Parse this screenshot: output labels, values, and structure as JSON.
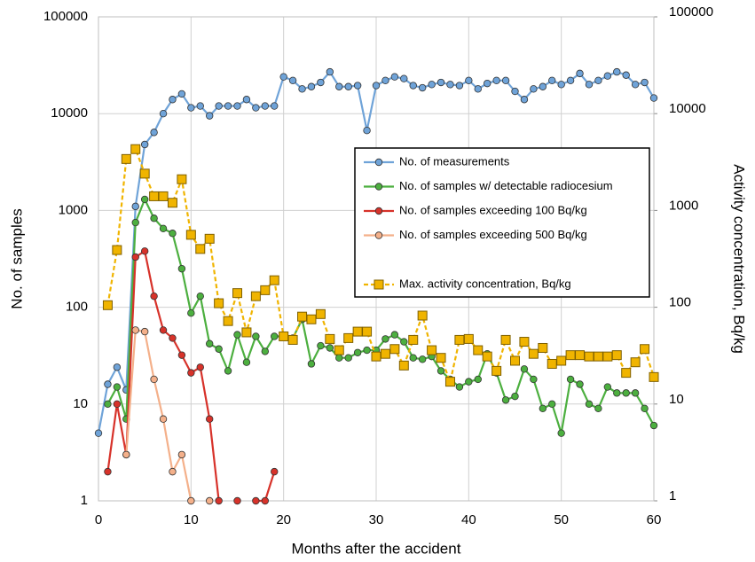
{
  "chart_data": {
    "type": "line",
    "x_label": "Months after the accident",
    "y_label": "No. of samples",
    "y2_label": "Activity concentration, Bq/kg",
    "x": [
      0,
      1,
      2,
      3,
      4,
      5,
      6,
      7,
      8,
      9,
      10,
      11,
      12,
      13,
      14,
      15,
      16,
      17,
      18,
      19,
      20,
      21,
      22,
      23,
      24,
      25,
      26,
      27,
      28,
      29,
      30,
      31,
      32,
      33,
      34,
      35,
      36,
      37,
      38,
      39,
      40,
      41,
      42,
      43,
      44,
      45,
      46,
      47,
      48,
      49,
      50,
      51,
      52,
      53,
      54,
      55,
      56,
      57,
      58,
      59,
      60
    ],
    "xlim": [
      0,
      60
    ],
    "xticks": [
      0,
      10,
      20,
      30,
      40,
      50,
      60
    ],
    "ylim": [
      1,
      100000
    ],
    "yticks": [
      1,
      10,
      100,
      1000,
      10000,
      100000
    ],
    "y2lim": [
      1,
      100000
    ],
    "y2ticks": [
      1,
      10,
      100,
      1000,
      10000,
      100000
    ],
    "log_scale": true,
    "grid": true,
    "legend_loc": "center right",
    "series": [
      {
        "name": "No. of measurements",
        "color": "#6fa3d8",
        "marker": "circle",
        "values": [
          5,
          16,
          24,
          14,
          1100,
          4800,
          6400,
          10000,
          14000,
          16000,
          11500,
          12000,
          9500,
          12000,
          12000,
          12000,
          14000,
          11500,
          12000,
          12000,
          24000,
          22000,
          18000,
          19000,
          21000,
          27000,
          19000,
          19000,
          19500,
          6700,
          19500,
          22000,
          24000,
          23000,
          19500,
          18500,
          20000,
          21000,
          20000,
          19500,
          22000,
          18000,
          20500,
          22000,
          22000,
          17000,
          14000,
          18000,
          19000,
          22000,
          20000,
          22000,
          26000,
          20000,
          22000,
          24500,
          27000,
          25000,
          20000,
          21000,
          14500
        ]
      },
      {
        "name": "No. of samples w/ detectable radiocesium",
        "color": "#4caf3f",
        "marker": "circle",
        "values": [
          null,
          10,
          15,
          7,
          750,
          1300,
          830,
          650,
          580,
          250,
          87,
          130,
          42,
          37,
          22,
          52,
          27,
          50,
          35,
          50,
          50,
          48,
          75,
          26,
          40,
          38,
          30,
          30,
          34,
          36,
          36,
          47,
          52,
          44,
          30,
          29,
          31,
          22,
          18,
          15,
          17,
          18,
          33,
          21,
          11,
          12,
          23,
          18,
          9,
          10,
          5,
          18,
          16,
          10,
          9,
          15,
          13,
          13,
          13,
          9,
          6
        ]
      },
      {
        "name": "No. of samples exceeding 100 Bq/kg",
        "color": "#d7322a",
        "marker": "circle",
        "values": [
          null,
          2,
          10,
          3,
          330,
          380,
          130,
          58,
          48,
          32,
          21,
          24,
          7,
          1,
          null,
          1,
          null,
          1,
          1,
          2,
          null,
          null,
          null,
          null,
          null,
          null,
          null,
          null,
          null,
          null,
          null,
          null,
          null,
          null,
          null,
          null,
          null,
          null,
          null,
          null,
          null,
          null,
          null,
          null,
          null,
          null,
          null,
          null,
          null,
          null,
          null,
          null,
          null,
          null,
          null,
          null,
          null,
          null,
          null,
          null,
          null
        ]
      },
      {
        "name": "No. of samples exceeding 500 Bq/kg",
        "color": "#f4b08a",
        "marker": "circle",
        "values": [
          null,
          null,
          null,
          3,
          58,
          56,
          18,
          7,
          2,
          3,
          1,
          null,
          1,
          null,
          null,
          null,
          null,
          null,
          null,
          null,
          null,
          null,
          null,
          null,
          null,
          null,
          null,
          null,
          null,
          null,
          null,
          null,
          null,
          null,
          null,
          null,
          null,
          null,
          null,
          null,
          null,
          null,
          null,
          null,
          null,
          null,
          null,
          null,
          null,
          null,
          null,
          null,
          null,
          null,
          null,
          null,
          null,
          null,
          null,
          null,
          null
        ]
      },
      {
        "name": "Max. activity concentration, Bq/kg",
        "color": "#f0b400",
        "marker": "square",
        "dashed": true,
        "axis": "y2",
        "values": [
          null,
          105,
          390,
          3400,
          4300,
          2400,
          1400,
          1400,
          1200,
          2100,
          560,
          400,
          510,
          110,
          72,
          140,
          55,
          130,
          150,
          190,
          50,
          46,
          80,
          75,
          85,
          47,
          36,
          48,
          56,
          56,
          31,
          33,
          37,
          25,
          46,
          82,
          36,
          30,
          17,
          46,
          47,
          36,
          31,
          22,
          46,
          28,
          44,
          33,
          38,
          26,
          28,
          32,
          32,
          31,
          31,
          31,
          32,
          21,
          27,
          37,
          19
        ]
      }
    ]
  }
}
